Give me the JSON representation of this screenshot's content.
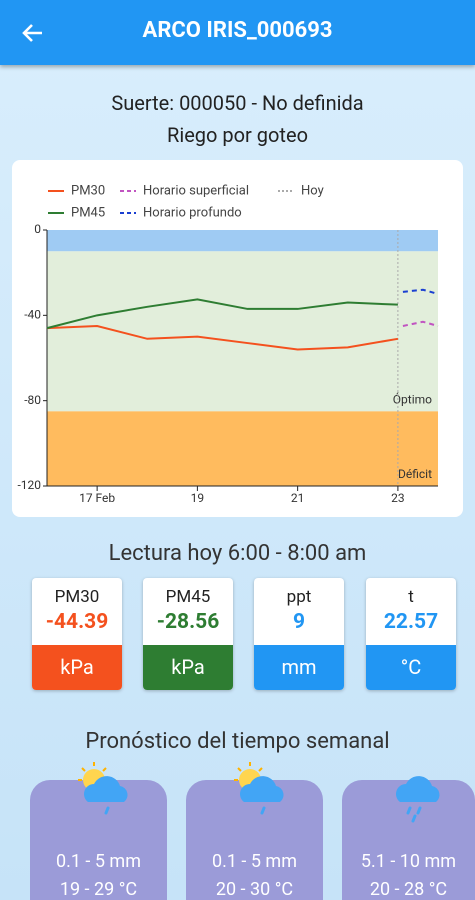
{
  "header": {
    "title": "ARCO IRIS_000693"
  },
  "info": {
    "lot": "Suerte: 000050 - No definida",
    "system": "Riego por goteo"
  },
  "chart_data": {
    "type": "line",
    "xlim": [
      16,
      23.8
    ],
    "xticks": [
      {
        "value": 17,
        "label": "17 Feb"
      },
      19,
      21,
      23
    ],
    "ylim": [
      -120,
      0
    ],
    "yticks": [
      0,
      -40,
      -80,
      -120
    ],
    "grid": false,
    "bands": [
      {
        "from": 0,
        "to": -10,
        "color": "#9fcbf3"
      },
      {
        "from": -10,
        "to": -85,
        "color": "#e2eedb",
        "label": "Óptimo"
      },
      {
        "from": -85,
        "to": -120,
        "color": "#ffbb5e",
        "label": "Déficit"
      }
    ],
    "today": {
      "label": "Hoy",
      "x": 23,
      "color": "#aaaaaa"
    },
    "series": [
      {
        "name": "PM30",
        "color": "#f4511e",
        "style": "solid",
        "x": [
          16,
          17,
          18,
          19,
          20,
          21,
          22,
          23
        ],
        "values": [
          -46,
          -45,
          -51,
          -50,
          -53,
          -56,
          -55,
          -51
        ]
      },
      {
        "name": "PM45",
        "color": "#2e7d32",
        "style": "solid",
        "x": [
          16,
          17,
          18,
          19,
          20,
          21,
          22,
          23
        ],
        "values": [
          -46,
          -40,
          -36,
          -32.5,
          -37,
          -37,
          -34,
          -35
        ]
      },
      {
        "name": "Horario superficial",
        "color": "#c154c1",
        "style": "dashed",
        "x": [
          23.1,
          23.5,
          23.8
        ],
        "values": [
          -45,
          -43,
          -45
        ]
      },
      {
        "name": "Horario profundo",
        "color": "#1a3fd1",
        "style": "dashed",
        "x": [
          23.1,
          23.5,
          23.8
        ],
        "values": [
          -29,
          -28,
          -30
        ]
      }
    ]
  },
  "readings": {
    "title": "Lectura hoy 6:00 - 8:00 am",
    "items": [
      {
        "label": "PM30",
        "value": "-44.39",
        "unit": "kPa",
        "color": "#f4511e"
      },
      {
        "label": "PM45",
        "value": "-28.56",
        "unit": "kPa",
        "color": "#2e7d32"
      },
      {
        "label": "ppt",
        "value": "9",
        "unit": "mm",
        "color": "#2196f3"
      },
      {
        "label": "t",
        "value": "22.57",
        "unit": "°C",
        "color": "#2196f3"
      }
    ]
  },
  "forecast": {
    "title": "Pronóstico del tiempo semanal",
    "days": [
      {
        "rain": "0.1 - 5 mm",
        "temp": "19 - 29 °C"
      },
      {
        "rain": "0.1 - 5 mm",
        "temp": "20 - 30 °C"
      },
      {
        "rain": "5.1 - 10 mm",
        "temp": "20 - 28 °C"
      }
    ]
  }
}
